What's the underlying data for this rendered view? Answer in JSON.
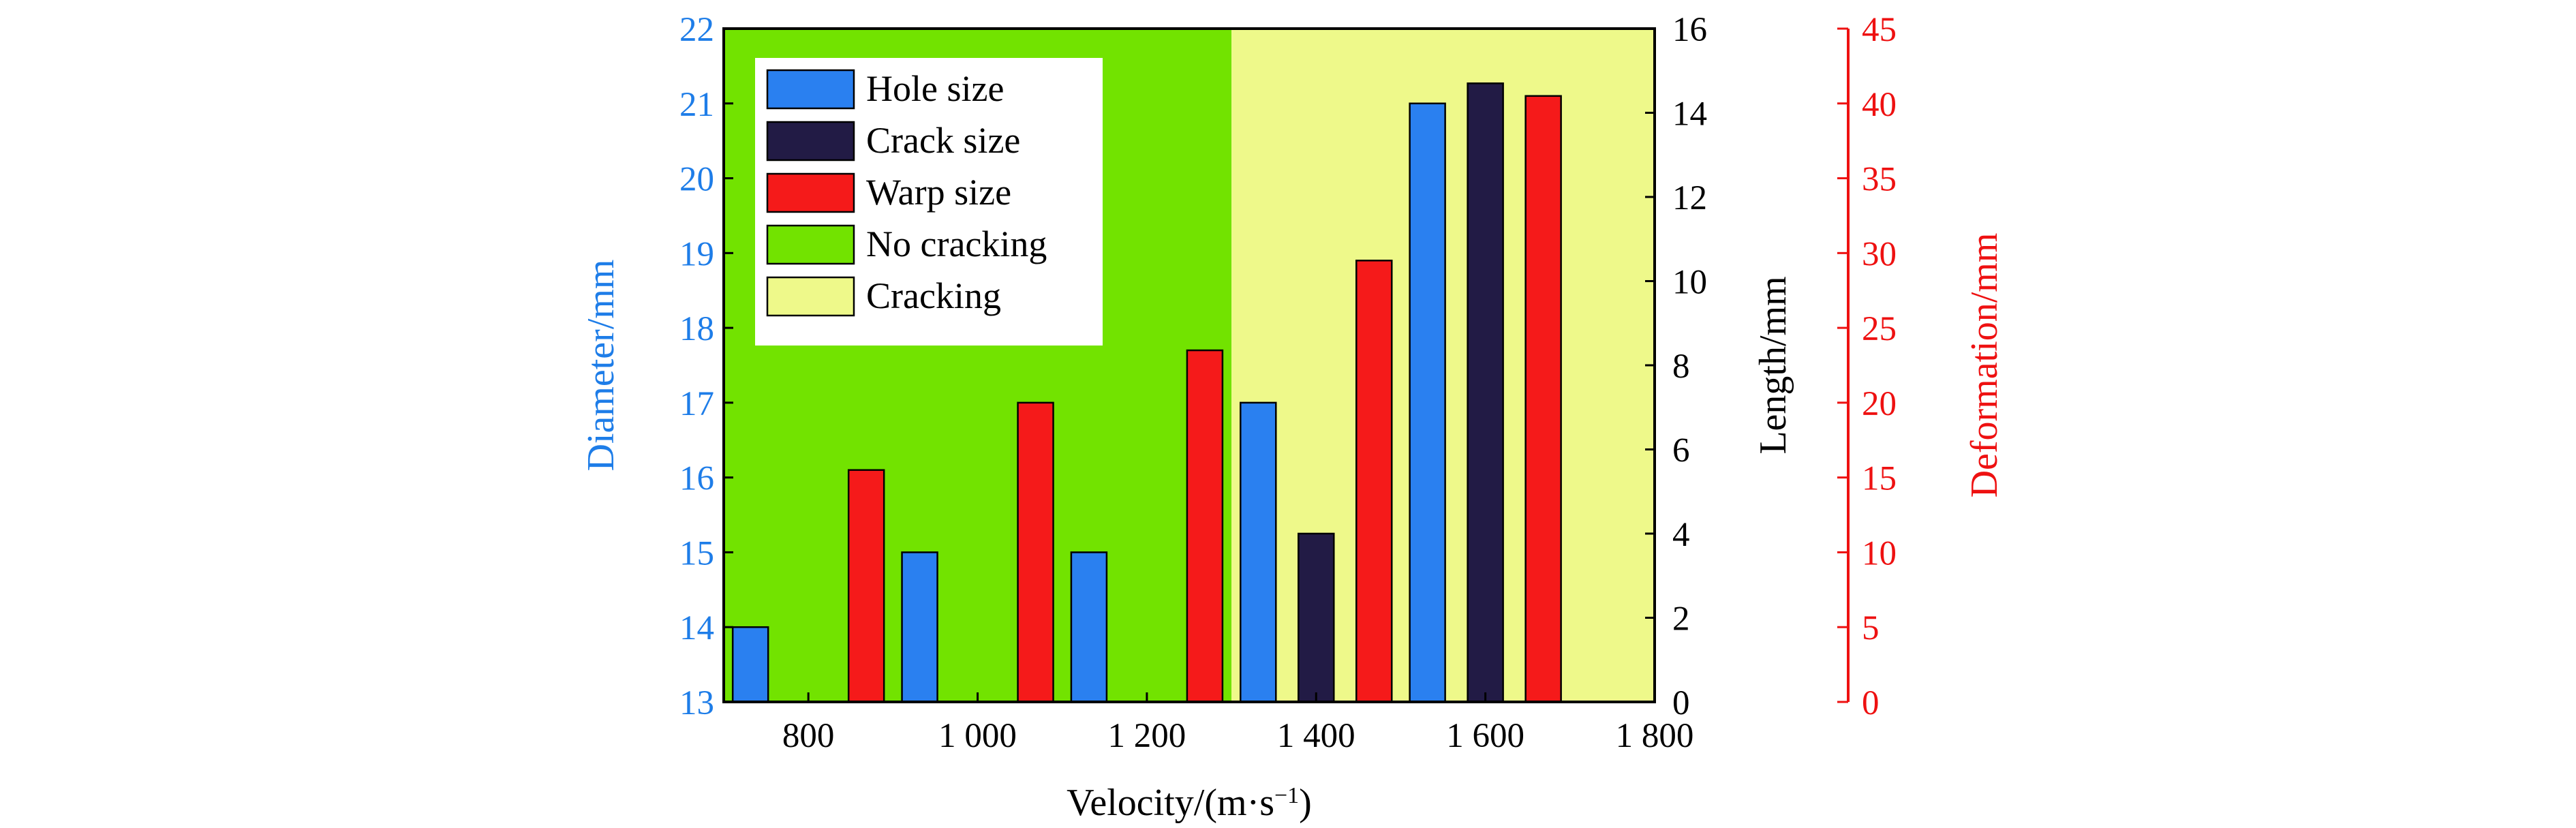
{
  "chart_data": {
    "type": "bar",
    "xlabel_parts": [
      "Velocity/(m·s",
      "−1",
      ")"
    ],
    "x_ticks": [
      "800",
      "1 000",
      "1 200",
      "1 400",
      "1 600",
      "1 800"
    ],
    "xlim": [
      700,
      1800
    ],
    "bar_offsets": [
      -85,
      0,
      85
    ],
    "axes": [
      {
        "id": "left",
        "label": "Diameter/mm",
        "color": "#1e7de8",
        "range": [
          13,
          22
        ],
        "ticks": [
          "13",
          "14",
          "15",
          "16",
          "17",
          "18",
          "19",
          "20",
          "21",
          "22"
        ]
      },
      {
        "id": "mid",
        "label": "Length/mm",
        "color": "#000000",
        "range": [
          0,
          16
        ],
        "ticks": [
          "0",
          "2",
          "4",
          "6",
          "8",
          "10",
          "12",
          "14",
          "16"
        ]
      },
      {
        "id": "right",
        "label": "Deformation/mm",
        "color": "#ee1111",
        "range": [
          0,
          45
        ],
        "ticks": [
          "0",
          "5",
          "10",
          "15",
          "20",
          "25",
          "30",
          "35",
          "40",
          "45"
        ]
      }
    ],
    "regions": [
      {
        "name": "No cracking",
        "from": 700,
        "to": 1300,
        "color": "#72e300"
      },
      {
        "name": "Cracking",
        "from": 1300,
        "to": 1800,
        "color": "#eef98a"
      }
    ],
    "series": [
      {
        "name": "Hole size",
        "axis": "left",
        "color": "#2a80f0",
        "x": [
          800,
          1000,
          1200,
          1400,
          1600
        ],
        "values": [
          14,
          15,
          15,
          17,
          21
        ]
      },
      {
        "name": "Crack size",
        "axis": "mid",
        "color": "#221b45",
        "x": [
          800,
          1000,
          1200,
          1400,
          1600
        ],
        "values": [
          0,
          0,
          0,
          4,
          14.7
        ]
      },
      {
        "name": "Warp size",
        "axis": "right",
        "color": "#f51a1a",
        "x": [
          800,
          1000,
          1200,
          1400,
          1600
        ],
        "values": [
          15.5,
          20,
          23.5,
          29.5,
          40.5
        ]
      }
    ],
    "legend": [
      "Hole size",
      "Crack size",
      "Warp size",
      "No cracking",
      "Cracking"
    ],
    "legend_position": "top-left",
    "grid": false
  }
}
